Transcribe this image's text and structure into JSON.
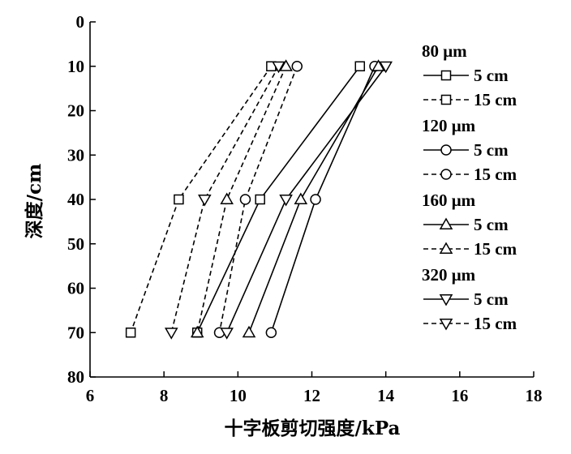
{
  "chart_data": {
    "type": "line",
    "xlabel": "十字板剪切强度/kPa",
    "ylabel": "深度/cm",
    "xlim": [
      6,
      18
    ],
    "ylim": [
      0,
      80
    ],
    "y_inverted": true,
    "x_ticks": [
      6,
      8,
      10,
      12,
      14,
      16,
      18
    ],
    "y_ticks": [
      0,
      10,
      20,
      30,
      40,
      50,
      60,
      70,
      80
    ],
    "legend_position": "right",
    "groups": [
      {
        "title": "80 μm",
        "marker": "square"
      },
      {
        "title": "120 μm",
        "marker": "circle"
      },
      {
        "title": "160 μm",
        "marker": "triangle-up"
      },
      {
        "title": "320 μm",
        "marker": "triangle-down"
      }
    ],
    "series": [
      {
        "group": "80 μm",
        "name": "5 cm",
        "marker": "square",
        "dash": "solid",
        "x": [
          13.3,
          10.6,
          8.9
        ],
        "y": [
          10,
          40,
          70
        ]
      },
      {
        "group": "80 μm",
        "name": "15 cm",
        "marker": "square",
        "dash": "dashed",
        "x": [
          10.9,
          8.4,
          7.1
        ],
        "y": [
          10,
          40,
          70
        ]
      },
      {
        "group": "120 μm",
        "name": "5 cm",
        "marker": "circle",
        "dash": "solid",
        "x": [
          13.7,
          12.1,
          10.9
        ],
        "y": [
          10,
          40,
          70
        ]
      },
      {
        "group": "120 μm",
        "name": "15 cm",
        "marker": "circle",
        "dash": "dashed",
        "x": [
          11.6,
          10.2,
          9.5
        ],
        "y": [
          10,
          40,
          70
        ]
      },
      {
        "group": "160 μm",
        "name": "5 cm",
        "marker": "triangle-up",
        "dash": "solid",
        "x": [
          13.8,
          11.7,
          10.3
        ],
        "y": [
          10,
          40,
          70
        ]
      },
      {
        "group": "160 μm",
        "name": "15 cm",
        "marker": "triangle-up",
        "dash": "dashed",
        "x": [
          11.3,
          9.7,
          8.9
        ],
        "y": [
          10,
          40,
          70
        ]
      },
      {
        "group": "320 μm",
        "name": "5 cm",
        "marker": "triangle-down",
        "dash": "solid",
        "x": [
          14.0,
          11.3,
          9.7
        ],
        "y": [
          10,
          40,
          70
        ]
      },
      {
        "group": "320 μm",
        "name": "15 cm",
        "marker": "triangle-down",
        "dash": "dashed",
        "x": [
          11.1,
          9.1,
          8.2
        ],
        "y": [
          10,
          40,
          70
        ]
      }
    ]
  }
}
